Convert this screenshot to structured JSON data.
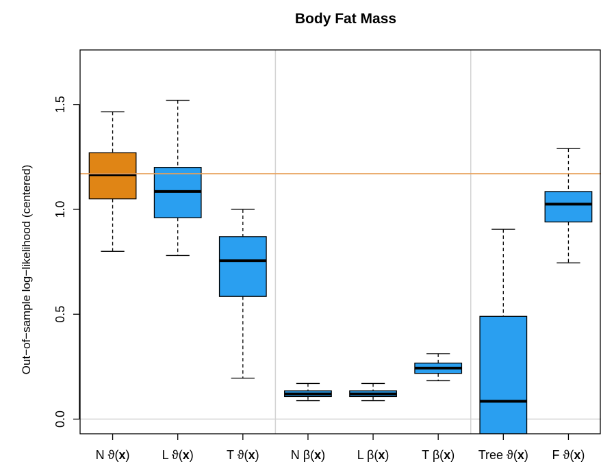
{
  "chart_data": {
    "type": "boxplot",
    "title": "Body Fat Mass",
    "ylabel": "Out−of−sample log−likelihood (centered)",
    "xlabel": "",
    "ylim": [
      -0.07,
      1.76
    ],
    "yticks": [
      0.0,
      0.5,
      1.0,
      1.5
    ],
    "ytick_labels": [
      "0.0",
      "0.5",
      "1.0",
      "1.5"
    ],
    "reference_line": {
      "y": 1.17,
      "color": "#e8a05a"
    },
    "zero_line": {
      "y": 0.0,
      "color": "#d3d3d3"
    },
    "group_separators_after": [
      3,
      6
    ],
    "categories": [
      {
        "prefix": "N ",
        "suffix": "ϑ(",
        "bold": "x",
        "close": ")"
      },
      {
        "prefix": "L ",
        "suffix": "ϑ(",
        "bold": "x",
        "close": ")"
      },
      {
        "prefix": "T ",
        "suffix": "ϑ(",
        "bold": "x",
        "close": ")"
      },
      {
        "prefix": "N ",
        "suffix": "β(",
        "bold": "x",
        "close": ")"
      },
      {
        "prefix": "L ",
        "suffix": "β(",
        "bold": "x",
        "close": ")"
      },
      {
        "prefix": "T ",
        "suffix": "β(",
        "bold": "x",
        "close": ")"
      },
      {
        "prefix": "Tree ",
        "suffix": "ϑ(",
        "bold": "x",
        "close": ")"
      },
      {
        "prefix": "F ",
        "suffix": "ϑ(",
        "bold": "x",
        "close": ")"
      }
    ],
    "boxes": [
      {
        "min": 0.8,
        "q1": 1.05,
        "median": 1.165,
        "q3": 1.27,
        "max": 1.465,
        "color": "#e08515"
      },
      {
        "min": 0.78,
        "q1": 0.96,
        "median": 1.085,
        "q3": 1.2,
        "max": 1.52,
        "color": "#2a9ff0"
      },
      {
        "min": 0.195,
        "q1": 0.585,
        "median": 0.755,
        "q3": 0.87,
        "max": 1.0,
        "color": "#2a9ff0"
      },
      {
        "min": 0.088,
        "q1": 0.108,
        "median": 0.12,
        "q3": 0.135,
        "max": 0.17,
        "color": "#2a9ff0"
      },
      {
        "min": 0.088,
        "q1": 0.108,
        "median": 0.12,
        "q3": 0.135,
        "max": 0.17,
        "color": "#2a9ff0"
      },
      {
        "min": 0.183,
        "q1": 0.218,
        "median": 0.243,
        "q3": 0.267,
        "max": 0.312,
        "color": "#2a9ff0"
      },
      {
        "min": -0.07,
        "q1": -0.07,
        "median": 0.085,
        "q3": 0.49,
        "max": 0.905,
        "color": "#2a9ff0"
      },
      {
        "min": 0.745,
        "q1": 0.94,
        "median": 1.025,
        "q3": 1.085,
        "max": 1.29,
        "color": "#2a9ff0"
      }
    ],
    "grid": false,
    "legend": "none"
  }
}
